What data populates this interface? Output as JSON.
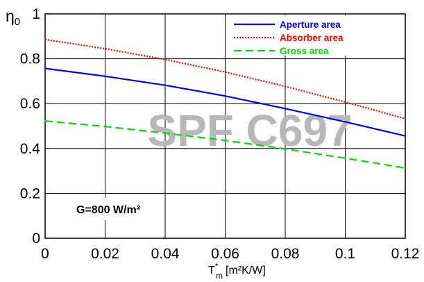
{
  "chart_data": {
    "type": "line",
    "xlabel_main": "T",
    "xlabel_sup": "*",
    "xlabel_sub": "m",
    "xlabel_unit": "[m²K/W]",
    "ylabel_main": "η",
    "ylabel_sub": "0",
    "xlim": [
      0,
      0.12
    ],
    "ylim": [
      0,
      1
    ],
    "x_ticks": [
      "0",
      "0.02",
      "0.04",
      "0.06",
      "0.08",
      "0.1",
      "0.12"
    ],
    "y_ticks": [
      "0",
      "0.2",
      "0.4",
      "0.6",
      "0.8",
      "1"
    ],
    "x": [
      0,
      0.02,
      0.04,
      0.06,
      0.08,
      0.1,
      0.12
    ],
    "grid": true,
    "legend_position": "top-right",
    "annotation": "G=800 W/m²",
    "watermark": "SPF C697",
    "series": [
      {
        "name": "Aperture area",
        "color": "#0000ff",
        "dash": "solid",
        "values": [
          0.757,
          0.722,
          0.682,
          0.634,
          0.578,
          0.519,
          0.456
        ]
      },
      {
        "name": "Absorber area",
        "color": "#ff0000",
        "dash": "dotted",
        "values": [
          0.886,
          0.845,
          0.797,
          0.741,
          0.677,
          0.607,
          0.533
        ]
      },
      {
        "name": "Gross area",
        "color": "#00dd00",
        "dash": "dashed",
        "values": [
          0.523,
          0.498,
          0.469,
          0.436,
          0.398,
          0.357,
          0.313
        ]
      }
    ]
  }
}
